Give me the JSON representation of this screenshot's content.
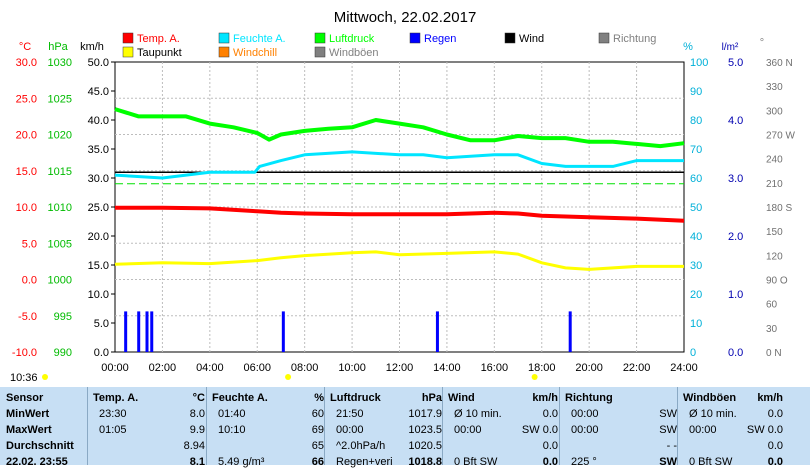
{
  "title": "Mittwoch, 22.02.2017",
  "colors": {
    "temp": "#ff0000",
    "humidity": "#00e5ff",
    "pressure": "#00ff00",
    "rain": "#0000ff",
    "wind": "#000000",
    "direction": "#808080",
    "dewpoint": "#ffff00",
    "windchill": "#ff8000",
    "gusts": "#808080",
    "panel": "#c7dff4",
    "temp_axis": "#ff0000",
    "pressure_axis": "#00bb00",
    "humidity_axis": "#00b0d8",
    "rain_axis": "#0000b0"
  },
  "legend": [
    {
      "label": "Temp. A.",
      "color": "#ff0000"
    },
    {
      "label": "Feuchte A.",
      "color": "#00e5ff"
    },
    {
      "label": "Luftdruck",
      "color": "#00ff00"
    },
    {
      "label": "Regen",
      "color": "#0000ff"
    },
    {
      "label": "Wind",
      "color": "#000000"
    },
    {
      "label": "Richtung",
      "color": "#808080"
    },
    {
      "label": "Taupunkt",
      "color": "#ffff00"
    },
    {
      "label": "Windchill",
      "color": "#ff8000"
    },
    {
      "label": "Windböen",
      "color": "#808080"
    }
  ],
  "axes": {
    "temp": {
      "unit": "°C",
      "ticks": [
        "30.0",
        "25.0",
        "20.0",
        "15.0",
        "10.0",
        "5.0",
        "0.0",
        "-5.0",
        "-10.0"
      ]
    },
    "pressure": {
      "unit": "hPa",
      "ticks": [
        "1030",
        "1025",
        "1020",
        "1015",
        "1010",
        "1005",
        "1000",
        "995",
        "990"
      ]
    },
    "wind": {
      "unit": "km/h",
      "ticks": [
        "50.0",
        "45.0",
        "40.0",
        "35.0",
        "30.0",
        "25.0",
        "20.0",
        "15.0",
        "10.0",
        "5.0",
        "0.0"
      ]
    },
    "humidity": {
      "unit": "%",
      "ticks": [
        "100",
        "90",
        "80",
        "70",
        "60",
        "50",
        "40",
        "30",
        "20",
        "10",
        "0"
      ]
    },
    "rain": {
      "unit": "l/m²",
      "ticks": [
        "5.0",
        "4.0",
        "3.0",
        "2.0",
        "1.0",
        "0.0"
      ]
    },
    "direction": {
      "unit": "°",
      "ticks": [
        "360 N",
        "330",
        "300",
        "270 W",
        "240",
        "210",
        "180 S",
        "150",
        "120",
        "90 O",
        "60",
        "30",
        "0 N"
      ]
    }
  },
  "x_ticks": [
    "00:00",
    "02:00",
    "04:00",
    "06:00",
    "08:00",
    "10:00",
    "12:00",
    "14:00",
    "16:00",
    "18:00",
    "20:00",
    "22:00",
    "24:00"
  ],
  "chart_data": {
    "type": "line",
    "x_unit": "hours",
    "xlim": [
      0,
      24
    ],
    "series": [
      {
        "name": "Temp. A.",
        "axis": "temp",
        "x": [
          0,
          2,
          4,
          6,
          7,
          8,
          10,
          12,
          14,
          16,
          17,
          18,
          20,
          22,
          24
        ],
        "values": [
          9.9,
          9.9,
          9.8,
          9.4,
          9.2,
          9.1,
          9.0,
          9.0,
          9.0,
          9.2,
          9.1,
          8.8,
          8.6,
          8.4,
          8.1
        ]
      },
      {
        "name": "Taupunkt",
        "axis": "temp",
        "x": [
          0,
          2,
          4,
          6,
          7,
          8,
          10,
          11,
          12,
          14,
          16,
          17,
          18,
          19,
          20,
          22,
          24
        ],
        "values": [
          2.1,
          2.3,
          2.2,
          2.6,
          3.0,
          3.3,
          3.7,
          3.8,
          3.4,
          3.6,
          3.8,
          3.5,
          2.3,
          1.6,
          1.4,
          1.8,
          1.8
        ]
      },
      {
        "name": "Feuchte A.",
        "axis": "humidity",
        "x": [
          0,
          2,
          4,
          5.9,
          6.1,
          7,
          8,
          10,
          12,
          13,
          14,
          16,
          17,
          18,
          19,
          21,
          22,
          24
        ],
        "values": [
          61,
          60,
          62,
          62,
          64,
          66,
          68,
          69,
          68,
          68,
          67,
          68,
          68,
          65,
          64,
          64,
          66,
          66
        ]
      },
      {
        "name": "Luftdruck",
        "axis": "pressure",
        "x": [
          0,
          0.5,
          1,
          2,
          3,
          4,
          5,
          6,
          6.5,
          7,
          8,
          9,
          10,
          11,
          12,
          13,
          14,
          15,
          16,
          17,
          18,
          19,
          20,
          21,
          22,
          23,
          24
        ],
        "values": [
          1023.5,
          1023.0,
          1022.5,
          1022.5,
          1022.5,
          1021.5,
          1021.0,
          1020.2,
          1019.3,
          1020.0,
          1020.5,
          1020.8,
          1021.0,
          1022.0,
          1021.5,
          1021.0,
          1020.0,
          1019.2,
          1019.2,
          1019.8,
          1019.5,
          1019.5,
          1019.0,
          1019.0,
          1018.7,
          1018.4,
          1018.8
        ]
      },
      {
        "name": "Regen",
        "type": "bar",
        "axis": "rain",
        "x": [
          0.45,
          1.0,
          1.35,
          1.55,
          7.1,
          13.6,
          19.2
        ],
        "values": [
          0.7,
          0.7,
          0.7,
          0.7,
          0.7,
          0.7,
          0.7
        ]
      }
    ],
    "hlines": [
      {
        "axis": "wind",
        "value": 31,
        "color": "#000000"
      },
      {
        "axis": "wind",
        "value": 29,
        "color": "#00e000",
        "style": "dashed"
      }
    ]
  },
  "panel": {
    "now_label": "10:36",
    "columns": [
      {
        "title": "Sensor",
        "rows": [
          "MinWert",
          "MaxWert",
          "Durchschnitt",
          "22.02. 23:55"
        ]
      },
      {
        "title": "Temp. A.",
        "unit": "°C",
        "rows": [
          [
            "23:30",
            "8.0"
          ],
          [
            "01:05",
            "9.9"
          ],
          [
            "",
            "8.94"
          ],
          [
            "",
            "8.1"
          ]
        ]
      },
      {
        "title": "Feuchte A.",
        "unit": "%",
        "rows": [
          [
            "01:40",
            "60"
          ],
          [
            "10:10",
            "69"
          ],
          [
            "",
            "65"
          ],
          [
            "5.49 g/m³",
            "66"
          ]
        ]
      },
      {
        "title": "Luftdruck",
        "unit": "hPa",
        "rows": [
          [
            "21:50",
            "1017.9"
          ],
          [
            "00:00",
            "1023.5"
          ],
          [
            "^2.0hPa/h",
            "1020.5"
          ],
          [
            "Regen+veri",
            "1018.8"
          ]
        ]
      },
      {
        "title": "Wind",
        "unit": "km/h",
        "rows": [
          [
            "Ø 10 min.",
            "0.0"
          ],
          [
            "00:00",
            "SW 0.0"
          ],
          [
            "",
            "0.0"
          ],
          [
            "0 Bft SW",
            "0.0"
          ]
        ]
      },
      {
        "title": "Richtung",
        "rows": [
          [
            "00:00",
            "SW"
          ],
          [
            "00:00",
            "SW"
          ],
          [
            "",
            "- -"
          ],
          [
            "225 °",
            "SW"
          ]
        ]
      },
      {
        "title": "Windböen",
        "unit": "km/h",
        "rows": [
          [
            "Ø 10 min.",
            "0.0"
          ],
          [
            "00:00",
            "SW 0.0"
          ],
          [
            "",
            "0.0"
          ],
          [
            "0 Bft SW",
            "0.0"
          ]
        ]
      }
    ]
  }
}
